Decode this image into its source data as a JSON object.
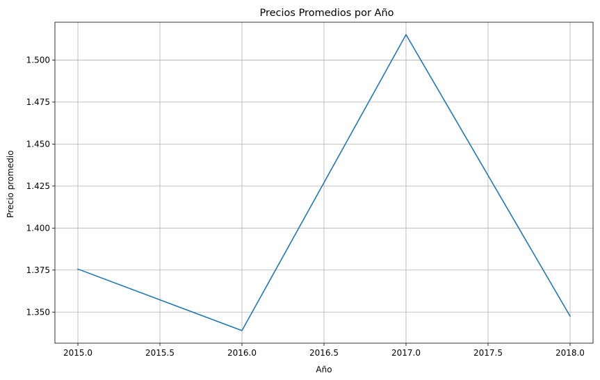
{
  "chart_data": {
    "type": "line",
    "title": "Precios Promedios por Año",
    "xlabel": "Año",
    "ylabel": "Precio promedio",
    "xlim": [
      2014.86,
      2018.14
    ],
    "ylim": [
      1.3315,
      1.5225
    ],
    "xticks": [
      2015.0,
      2015.5,
      2016.0,
      2016.5,
      2017.0,
      2017.5,
      2018.0
    ],
    "xtick_labels": [
      "2015.0",
      "2015.5",
      "2016.0",
      "2016.5",
      "2017.0",
      "2017.5",
      "2018.0"
    ],
    "yticks": [
      1.35,
      1.375,
      1.4,
      1.425,
      1.45,
      1.475,
      1.5
    ],
    "ytick_labels": [
      "1.350",
      "1.375",
      "1.400",
      "1.425",
      "1.450",
      "1.475",
      "1.500"
    ],
    "grid": true,
    "series": [
      {
        "color": "#1f77b4",
        "x": [
          2015,
          2016,
          2017,
          2018
        ],
        "y": [
          1.3756,
          1.339,
          1.5151,
          1.3476
        ]
      }
    ]
  }
}
